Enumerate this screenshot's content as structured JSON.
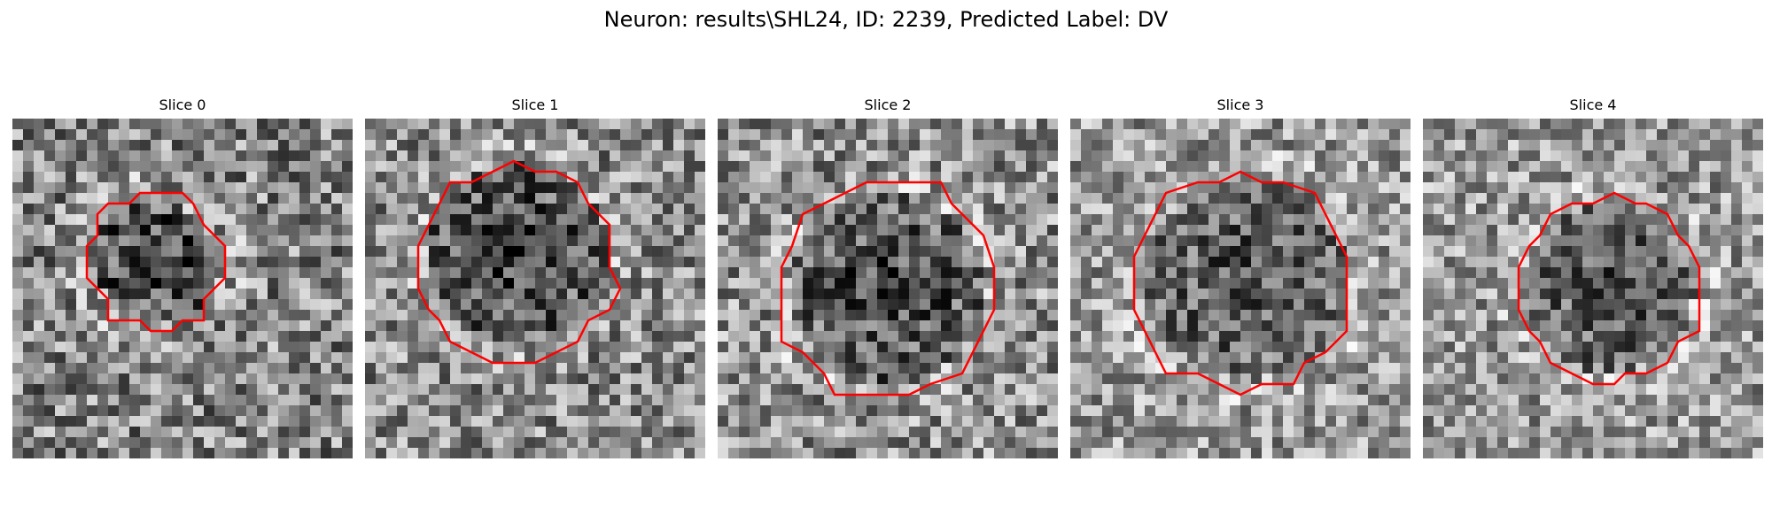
{
  "figure": {
    "title": "Neuron: results\\SHL24, ID: 2239, Predicted Label: DV"
  },
  "panels": [
    {
      "title": "Slice 0",
      "seed": 11,
      "mean": 0.52,
      "spread": 0.34,
      "dark_center": [
        0.42,
        0.42
      ],
      "dark_radius": 0.18,
      "contour_center": [
        0.42,
        0.42
      ],
      "contour_radius": 0.2
    },
    {
      "title": "Slice 1",
      "seed": 23,
      "mean": 0.55,
      "spread": 0.32,
      "dark_center": [
        0.45,
        0.4
      ],
      "dark_radius": 0.27,
      "contour_center": [
        0.45,
        0.43
      ],
      "contour_radius": 0.29
    },
    {
      "title": "Slice 2",
      "seed": 37,
      "mean": 0.56,
      "spread": 0.33,
      "dark_center": [
        0.5,
        0.5
      ],
      "dark_radius": 0.28,
      "contour_center": [
        0.5,
        0.5
      ],
      "contour_radius": 0.32
    },
    {
      "title": "Slice 3",
      "seed": 41,
      "mean": 0.6,
      "spread": 0.3,
      "dark_center": [
        0.52,
        0.47
      ],
      "dark_radius": 0.3,
      "contour_center": [
        0.5,
        0.48
      ],
      "contour_radius": 0.32
    },
    {
      "title": "Slice 4",
      "seed": 53,
      "mean": 0.6,
      "spread": 0.3,
      "dark_center": [
        0.55,
        0.5
      ],
      "dark_radius": 0.25,
      "contour_center": [
        0.55,
        0.5
      ],
      "contour_radius": 0.27
    }
  ],
  "colors": {
    "contour": "#ff0000",
    "background": "#ffffff"
  }
}
